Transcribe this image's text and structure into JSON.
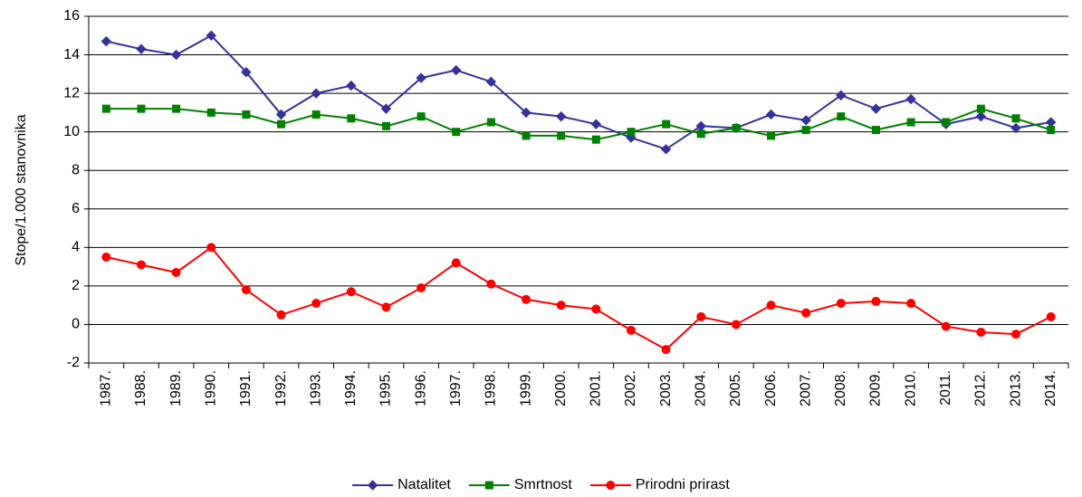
{
  "chart_data": {
    "type": "line",
    "y_label": "Stope/1.000 stanovnika",
    "categories": [
      "1987.",
      "1988.",
      "1989.",
      "1990.",
      "1991.",
      "1992.",
      "1993.",
      "1994.",
      "1995.",
      "1996.",
      "1997.",
      "1998.",
      "1999.",
      "2000.",
      "2001.",
      "2002.",
      "2003.",
      "2004.",
      "2005.",
      "2006.",
      "2007.",
      "2008.",
      "2009.",
      "2010.",
      "2011.",
      "2012.",
      "2013.",
      "2014."
    ],
    "series": [
      {
        "name": "Natalitet",
        "color": "#333399",
        "marker": "diamond",
        "values": [
          14.7,
          14.3,
          14.0,
          15.0,
          13.1,
          10.9,
          12.0,
          12.4,
          11.2,
          12.8,
          13.2,
          12.6,
          11.0,
          10.8,
          10.4,
          9.7,
          9.1,
          10.3,
          10.2,
          10.9,
          10.6,
          11.9,
          11.2,
          11.7,
          10.4,
          10.8,
          10.2,
          10.5
        ]
      },
      {
        "name": "Smrtnost",
        "color": "#008000",
        "marker": "square",
        "values": [
          11.2,
          11.2,
          11.2,
          11.0,
          10.9,
          10.4,
          10.9,
          10.7,
          10.3,
          10.8,
          10.0,
          10.5,
          9.8,
          9.8,
          9.6,
          10.0,
          10.4,
          9.9,
          10.2,
          9.8,
          10.1,
          10.8,
          10.1,
          10.5,
          10.5,
          11.2,
          10.7,
          10.1
        ]
      },
      {
        "name": "Prirodni prirast",
        "color": "#ff0000",
        "marker": "circle",
        "values": [
          3.5,
          3.1,
          2.7,
          4.0,
          1.8,
          0.5,
          1.1,
          1.7,
          0.9,
          1.9,
          3.2,
          2.1,
          1.3,
          1.0,
          0.8,
          -0.3,
          -1.3,
          0.4,
          0.0,
          1.0,
          0.6,
          1.1,
          1.2,
          1.1,
          -0.1,
          -0.4,
          -0.5,
          0.4
        ]
      }
    ],
    "ylim": [
      -2,
      16
    ],
    "yticks": [
      -2,
      0,
      2,
      4,
      6,
      8,
      10,
      12,
      14,
      16
    ],
    "grid": true,
    "legend": "bottom"
  }
}
